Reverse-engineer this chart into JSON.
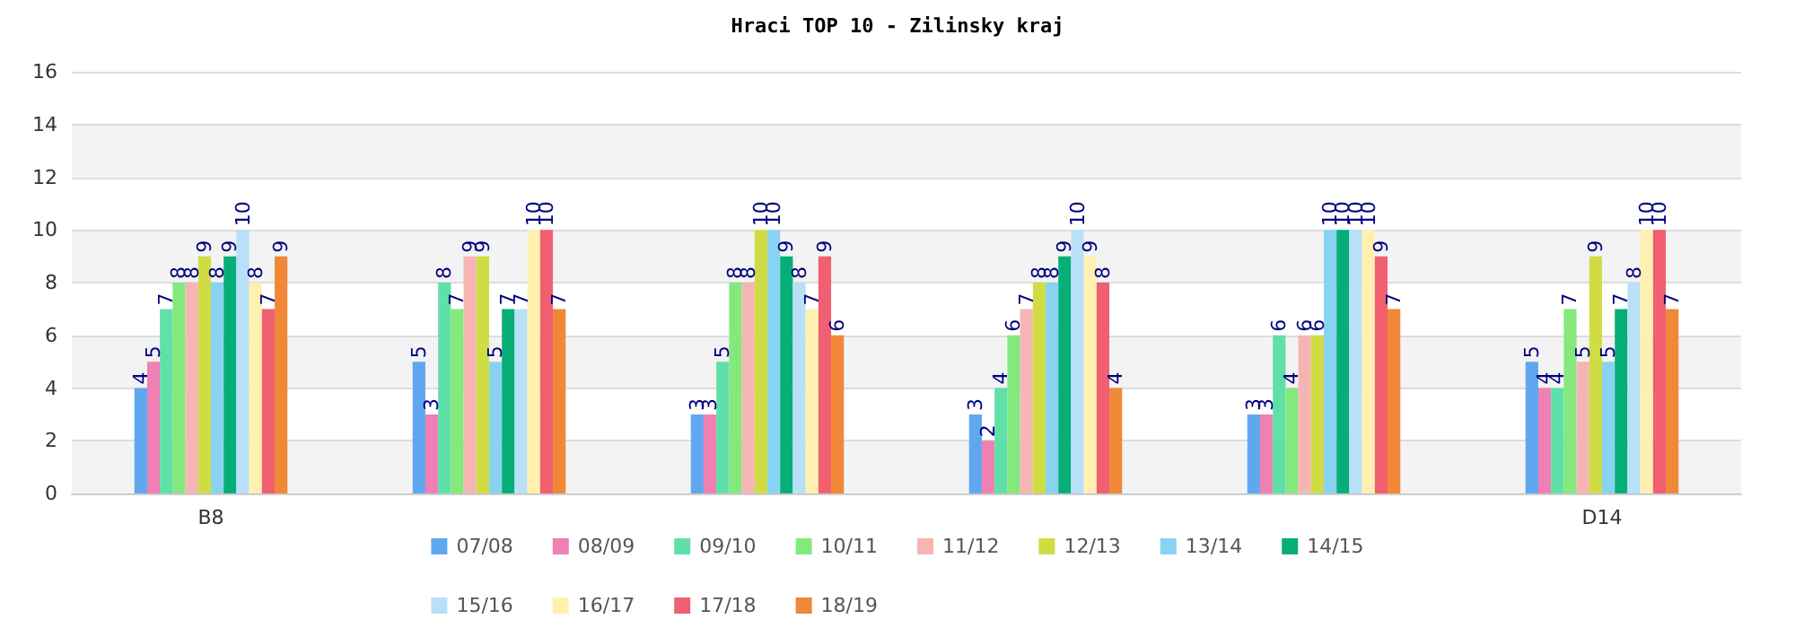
{
  "chart_data": {
    "type": "bar",
    "title": "Hraci TOP 10 - Zilinsky kraj",
    "categories": [
      "B8",
      null,
      null,
      null,
      null,
      "D14"
    ],
    "series": [
      {
        "name": "07/08",
        "color": "#5fa8f0",
        "values": [
          4,
          5,
          3,
          3,
          3,
          5
        ]
      },
      {
        "name": "08/09",
        "color": "#f07fb4",
        "values": [
          5,
          3,
          3,
          2,
          3,
          4
        ]
      },
      {
        "name": "09/10",
        "color": "#5fe0a8",
        "values": [
          7,
          8,
          5,
          4,
          6,
          4
        ]
      },
      {
        "name": "10/11",
        "color": "#84e87c",
        "values": [
          8,
          7,
          8,
          6,
          4,
          7
        ]
      },
      {
        "name": "11/12",
        "color": "#f5b5b5",
        "values": [
          8,
          9,
          8,
          7,
          6,
          5
        ]
      },
      {
        "name": "12/13",
        "color": "#d0dc44",
        "values": [
          9,
          9,
          10,
          8,
          6,
          9
        ]
      },
      {
        "name": "13/14",
        "color": "#88d4f0",
        "values": [
          8,
          5,
          10,
          8,
          10,
          5
        ]
      },
      {
        "name": "14/15",
        "color": "#08ae78",
        "values": [
          9,
          7,
          9,
          9,
          10,
          7
        ]
      },
      {
        "name": "15/16",
        "color": "#b8e0f8",
        "values": [
          10,
          7,
          8,
          10,
          10,
          8
        ]
      },
      {
        "name": "16/17",
        "color": "#fff0b0",
        "values": [
          8,
          10,
          7,
          9,
          10,
          10
        ]
      },
      {
        "name": "17/18",
        "color": "#f06070",
        "values": [
          7,
          10,
          9,
          8,
          9,
          10
        ]
      },
      {
        "name": "18/19",
        "color": "#f08838",
        "values": [
          9,
          7,
          6,
          4,
          7,
          7
        ]
      }
    ],
    "ylim": [
      0,
      16
    ],
    "yticks": [
      0,
      2,
      4,
      6,
      8,
      10,
      12,
      14,
      16
    ],
    "grid": "y",
    "legend": "bottom",
    "data_labels": true
  }
}
